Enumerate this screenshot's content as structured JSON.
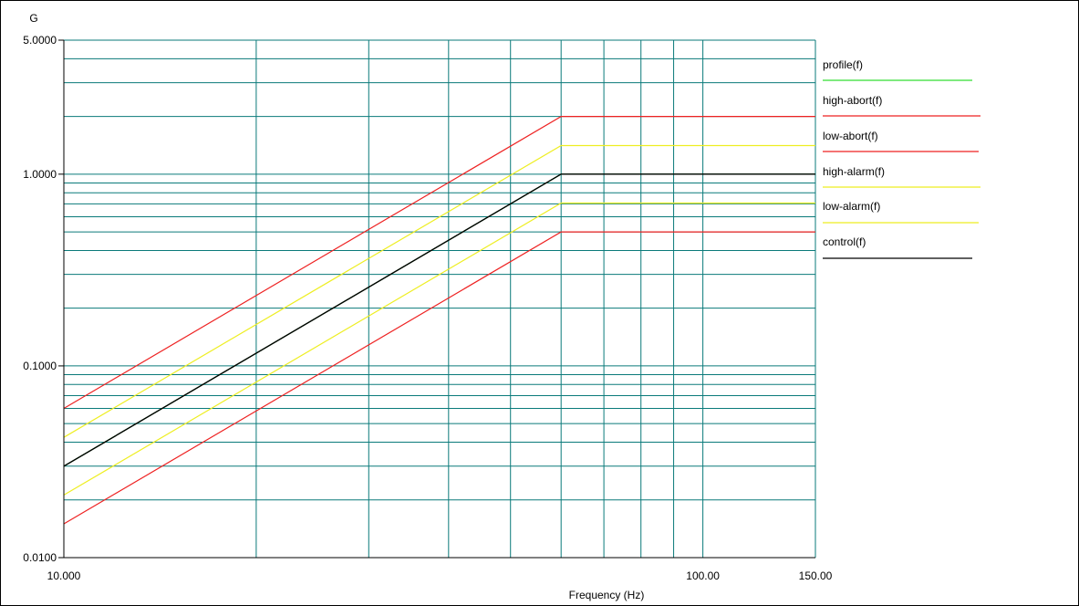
{
  "chart_data": {
    "type": "line",
    "xlabel": "Frequency (Hz)",
    "ylabel": "G",
    "x_scale": "log",
    "y_scale": "log",
    "xlim": [
      10,
      150
    ],
    "ylim": [
      0.01,
      5
    ],
    "x_tick_labels": [
      {
        "value": 10,
        "label": "10.000"
      },
      {
        "value": 100,
        "label": "100.00"
      },
      {
        "value": 150,
        "label": "150.00"
      }
    ],
    "y_tick_labels": [
      {
        "value": 5,
        "label": "5.0000"
      },
      {
        "value": 1,
        "label": "1.0000"
      },
      {
        "value": 0.1,
        "label": "0.1000"
      },
      {
        "value": 0.01,
        "label": "0.0100"
      }
    ],
    "x_gridlines": [
      20,
      30,
      40,
      50,
      60,
      70,
      80,
      90,
      100,
      150
    ],
    "y_gridlines": [
      0.02,
      0.03,
      0.04,
      0.05,
      0.06,
      0.07,
      0.08,
      0.09,
      0.1,
      0.2,
      0.3,
      0.4,
      0.5,
      0.6,
      0.7,
      0.8,
      0.9,
      1,
      2,
      3,
      4,
      5
    ],
    "grid": true,
    "grid_color": "#0a7a7a",
    "legend_position": "right",
    "series": [
      {
        "name": "profile(f)",
        "color": "#33dd33",
        "x": [
          10,
          60,
          150
        ],
        "y": [
          0.03,
          1.0,
          1.0
        ]
      },
      {
        "name": "high-abort(f)",
        "color": "#ee2222",
        "x": [
          10,
          60,
          150
        ],
        "y": [
          0.06,
          2.0,
          2.0
        ]
      },
      {
        "name": "low-abort(f)",
        "color": "#ee2222",
        "x": [
          10,
          60,
          150
        ],
        "y": [
          0.015,
          0.5,
          0.5
        ]
      },
      {
        "name": "high-alarm(f)",
        "color": "#eeee22",
        "x": [
          10,
          60,
          150
        ],
        "y": [
          0.0424,
          1.41,
          1.41
        ]
      },
      {
        "name": "low-alarm(f)",
        "color": "#eeee22",
        "x": [
          10,
          60,
          150
        ],
        "y": [
          0.0212,
          0.707,
          0.707
        ]
      },
      {
        "name": "control(f)",
        "color": "#000000",
        "x": [
          10,
          60,
          150
        ],
        "y": [
          0.03,
          1.0,
          1.0
        ]
      }
    ]
  }
}
